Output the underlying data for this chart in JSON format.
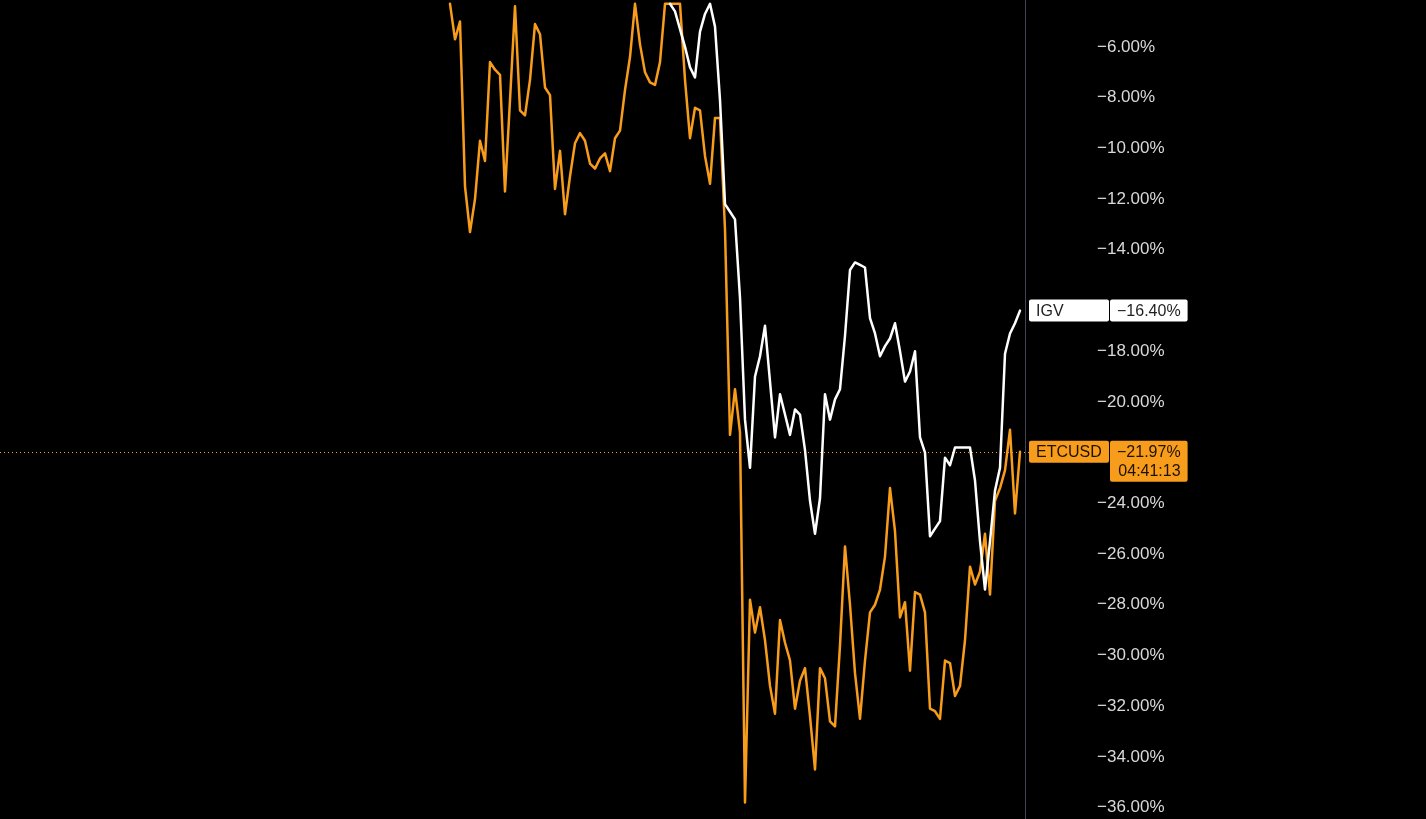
{
  "chart_data": {
    "type": "line",
    "categories": [
      null,
      null,
      null,
      null,
      null,
      null,
      null,
      null,
      null,
      null,
      null,
      null,
      null,
      null,
      null,
      null,
      null,
      null,
      null,
      null,
      null,
      null,
      null,
      null,
      null,
      null,
      null,
      null,
      null,
      null,
      null,
      null,
      null,
      null,
      null,
      null,
      null,
      null,
      null,
      null,
      null,
      null,
      null,
      null,
      null,
      null,
      null,
      null,
      null,
      null,
      null,
      null,
      null,
      null,
      null,
      null,
      null,
      null,
      null,
      null,
      null,
      null,
      null,
      null,
      null,
      null,
      null,
      null,
      null,
      null,
      null,
      null,
      null,
      null,
      null,
      null,
      null,
      null,
      null,
      null,
      null,
      null,
      null,
      null,
      null,
      null,
      null,
      null,
      null,
      null,
      null,
      null,
      null,
      null,
      null,
      null,
      null,
      null,
      null,
      null,
      null,
      null,
      null,
      null,
      null,
      null,
      null,
      null,
      null,
      null,
      null,
      null,
      null,
      null,
      null,
      null,
      null,
      null,
      null,
      null,
      null,
      null,
      null,
      null,
      null,
      null,
      null,
      null,
      null,
      null,
      null,
      null,
      null,
      null,
      null,
      null,
      null,
      null,
      null,
      null,
      null,
      null,
      null,
      null,
      null,
      null,
      null,
      null,
      null,
      null,
      null,
      null,
      null,
      null,
      null,
      null,
      null,
      null,
      null,
      null,
      null,
      null,
      null,
      null,
      null,
      null,
      null,
      null,
      null,
      null,
      null,
      null,
      null,
      null,
      null,
      null,
      null,
      null,
      null,
      null,
      null,
      null,
      null,
      null,
      null,
      null,
      null,
      null,
      null,
      null,
      null,
      null,
      null,
      null,
      null,
      null,
      null,
      null,
      null,
      null,
      null,
      null,
      null,
      null,
      null,
      null
    ],
    "series": [
      {
        "name": "ETCUSD",
        "color": "#f89c1c",
        "values": [
          null,
          null,
          null,
          null,
          null,
          null,
          null,
          null,
          null,
          null,
          null,
          null,
          null,
          null,
          null,
          null,
          null,
          null,
          null,
          null,
          null,
          null,
          null,
          null,
          null,
          null,
          null,
          null,
          null,
          null,
          null,
          null,
          null,
          null,
          null,
          null,
          null,
          null,
          null,
          null,
          null,
          null,
          null,
          null,
          null,
          null,
          null,
          null,
          null,
          null,
          null,
          null,
          null,
          null,
          null,
          null,
          null,
          null,
          null,
          null,
          null,
          null,
          null,
          null,
          null,
          null,
          null,
          null,
          null,
          null,
          null,
          null,
          null,
          null,
          null,
          null,
          null,
          null,
          null,
          null,
          null,
          null,
          null,
          null,
          null,
          null,
          null,
          null,
          null,
          null,
          -4.3,
          -5.7,
          -5.0,
          -11.5,
          -13.3,
          -12.0,
          -9.7,
          -10.5,
          -6.6,
          -6.9,
          -7.1,
          -11.7,
          -8.1,
          -4.4,
          -8.5,
          -8.7,
          -7.3,
          -5.1,
          -5.5,
          -7.6,
          -7.9,
          -11.6,
          -10.1,
          -12.6,
          -11.1,
          -9.8,
          -9.4,
          -9.7,
          -10.6,
          -10.8,
          -10.4,
          -10.2,
          -10.9,
          -9.6,
          -9.3,
          -7.7,
          -6.4,
          -4.3,
          -5.9,
          -7.0,
          -7.4,
          -7.5,
          -6.6,
          -4.3,
          -4.3,
          -4.3,
          -4.3,
          -7.3,
          -9.6,
          -8.4,
          -8.5,
          -10.3,
          -11.4,
          -8.8,
          -8.8,
          -13.2,
          -21.3,
          -19.5,
          -21.2,
          -35.8,
          -27.8,
          -29.1,
          -28.1,
          -29.4,
          -31.2,
          -32.3,
          -28.6,
          -29.5,
          -30.2,
          -32.1,
          -31.0,
          -30.5,
          -32.4,
          -34.5,
          -30.5,
          -30.9,
          -32.6,
          -32.8,
          -29.6,
          -25.7,
          -28.0,
          -30.7,
          -32.5,
          -30.2,
          -28.3,
          -28.0,
          -27.4,
          -26.1,
          -23.4,
          -25.1,
          -28.5,
          -27.9,
          -30.6,
          -27.5,
          -27.6,
          -28.3,
          -32.1,
          -32.2,
          -32.5,
          -30.2,
          -30.3,
          -31.6,
          -31.2,
          -29.4,
          -26.5,
          -27.2,
          -26.7,
          -25.2,
          -27.6,
          -23.9,
          -23.4,
          -22.7,
          -21.1,
          -24.4,
          -21.97,
          null
        ]
      },
      {
        "name": "IGV",
        "color": "#ffffff",
        "values": [
          null,
          null,
          null,
          null,
          null,
          null,
          null,
          null,
          null,
          null,
          null,
          null,
          null,
          null,
          null,
          null,
          null,
          null,
          null,
          null,
          null,
          null,
          null,
          null,
          null,
          null,
          null,
          null,
          null,
          null,
          null,
          null,
          null,
          null,
          null,
          null,
          null,
          null,
          null,
          null,
          null,
          null,
          null,
          null,
          null,
          null,
          null,
          null,
          null,
          null,
          null,
          null,
          null,
          null,
          null,
          null,
          null,
          null,
          null,
          null,
          null,
          null,
          null,
          null,
          null,
          null,
          null,
          null,
          null,
          null,
          null,
          null,
          null,
          null,
          null,
          null,
          null,
          null,
          null,
          null,
          null,
          null,
          null,
          null,
          null,
          null,
          null,
          null,
          null,
          null,
          null,
          null,
          null,
          null,
          null,
          null,
          null,
          null,
          null,
          null,
          null,
          null,
          null,
          null,
          null,
          null,
          null,
          null,
          null,
          null,
          null,
          null,
          null,
          null,
          null,
          null,
          null,
          null,
          null,
          null,
          null,
          null,
          null,
          null,
          null,
          null,
          null,
          null,
          null,
          null,
          null,
          null,
          null,
          null,
          -4.3,
          -4.6,
          -5.3,
          -6.0,
          -6.8,
          -7.2,
          -5.4,
          -4.7,
          -4.3,
          -5.2,
          -8.1,
          -12.2,
          -12.5,
          -12.8,
          -15.9,
          -20.7,
          -22.6,
          -19.0,
          -18.2,
          -17.0,
          -19.2,
          -21.4,
          -19.7,
          -20.5,
          -21.3,
          -20.3,
          -20.5,
          -21.9,
          -23.9,
          -25.2,
          -23.8,
          -19.7,
          -20.7,
          -19.9,
          -19.5,
          -17.4,
          -14.8,
          -14.5,
          -14.6,
          -14.7,
          -16.7,
          -17.3,
          -18.2,
          -17.8,
          -17.5,
          -16.9,
          -18.0,
          -19.2,
          -18.8,
          -18.0,
          -21.4,
          -22.0,
          -25.3,
          -25.0,
          -24.7,
          -22.2,
          -22.5,
          -21.8,
          -21.8,
          -21.8,
          -21.8,
          -23.1,
          -25.5,
          -27.4,
          -25.5,
          -23.5,
          -22.6,
          -18.1,
          -17.3,
          -16.9,
          -16.4,
          null
        ]
      }
    ],
    "ylim": [
      -36.45,
      -4.15
    ],
    "yticks": [
      {
        "value": -6,
        "label": "−6.00%"
      },
      {
        "value": -8,
        "label": "−8.00%"
      },
      {
        "value": -10,
        "label": "−10.00%"
      },
      {
        "value": -12,
        "label": "−12.00%"
      },
      {
        "value": -14,
        "label": "−14.00%"
      },
      {
        "value": -18,
        "label": "−18.00%"
      },
      {
        "value": -20,
        "label": "−20.00%"
      },
      {
        "value": -24,
        "label": "−24.00%"
      },
      {
        "value": -26,
        "label": "−26.00%"
      },
      {
        "value": -28,
        "label": "−28.00%"
      },
      {
        "value": -30,
        "label": "−30.00%"
      },
      {
        "value": -32,
        "label": "−32.00%"
      },
      {
        "value": -34,
        "label": "−34.00%"
      },
      {
        "value": -36,
        "label": "−36.00%"
      }
    ],
    "ref_lines": [
      {
        "axis": "y",
        "value": -21.97,
        "label": "−21.97%",
        "color": "#f89c1c",
        "line_style": "dotted"
      }
    ],
    "annotations": [
      "−16.40%",
      "04:41:13"
    ],
    "tick_labels": "y",
    "grid": false,
    "legend": false,
    "marker": "none"
  }
}
